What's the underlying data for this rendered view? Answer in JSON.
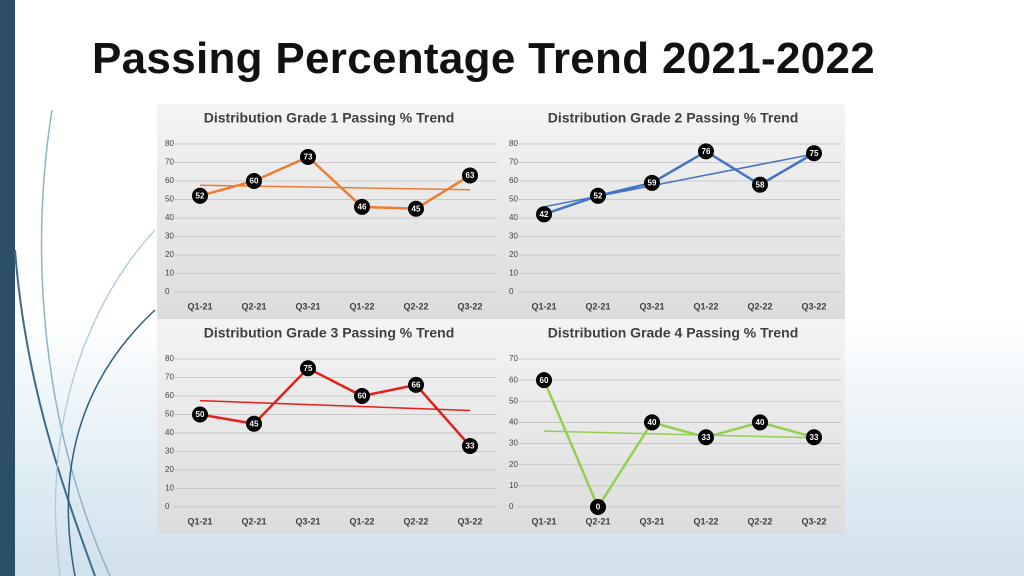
{
  "slide_title": "Passing Percentage Trend 2021-2022",
  "chart_data": [
    {
      "type": "line",
      "title": "Distribution Grade 1 Passing % Trend",
      "categories": [
        "Q1-21",
        "Q2-21",
        "Q3-21",
        "Q1-22",
        "Q2-22",
        "Q3-22"
      ],
      "values": [
        52,
        60,
        73,
        46,
        45,
        63
      ],
      "color": "#ed7d31",
      "trendline": true,
      "ylim": [
        0,
        80
      ],
      "yticks": [
        0,
        10,
        20,
        30,
        40,
        50,
        60,
        70,
        80
      ],
      "grid": true
    },
    {
      "type": "line",
      "title": "Distribution Grade 2 Passing % Trend",
      "categories": [
        "Q1-21",
        "Q2-21",
        "Q3-21",
        "Q1-22",
        "Q2-22",
        "Q3-22"
      ],
      "values": [
        42,
        52,
        59,
        76,
        58,
        75
      ],
      "color": "#4472c4",
      "trendline": true,
      "ylim": [
        0,
        80
      ],
      "yticks": [
        0,
        10,
        20,
        30,
        40,
        50,
        60,
        70,
        80
      ],
      "grid": true
    },
    {
      "type": "line",
      "title": "Distribution Grade 3 Passing % Trend",
      "categories": [
        "Q1-21",
        "Q2-21",
        "Q3-21",
        "Q1-22",
        "Q2-22",
        "Q3-22"
      ],
      "values": [
        50,
        45,
        75,
        60,
        66,
        33
      ],
      "color": "#e3201b",
      "trendline": true,
      "ylim": [
        0,
        80
      ],
      "yticks": [
        0,
        10,
        20,
        30,
        40,
        50,
        60,
        70,
        80
      ],
      "grid": true
    },
    {
      "type": "line",
      "title": "Distribution Grade 4 Passing % Trend",
      "categories": [
        "Q1-21",
        "Q2-21",
        "Q3-21",
        "Q1-22",
        "Q2-22",
        "Q3-22"
      ],
      "values": [
        60,
        0,
        40,
        33,
        40,
        33
      ],
      "color": "#92d050",
      "trendline": true,
      "ylim": [
        0,
        70
      ],
      "yticks": [
        0,
        10,
        20,
        30,
        40,
        50,
        60,
        70
      ],
      "grid": true
    }
  ]
}
